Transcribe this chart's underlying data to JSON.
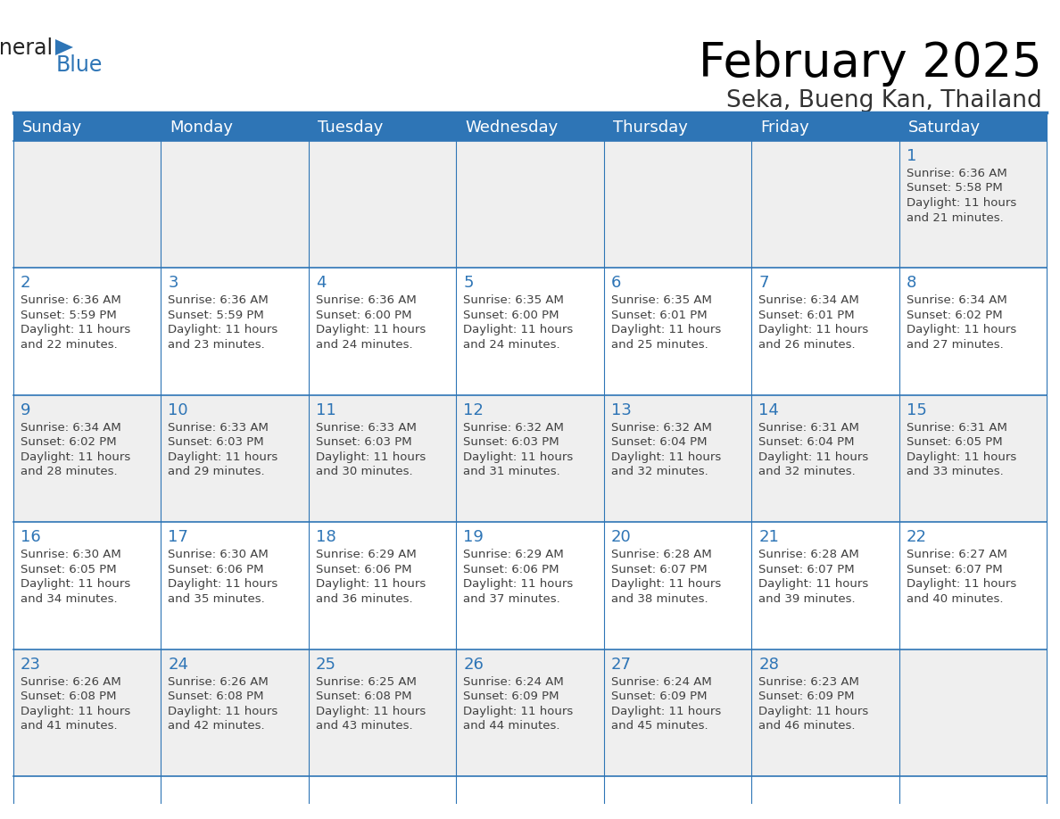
{
  "title": "February 2025",
  "subtitle": "Seka, Bueng Kan, Thailand",
  "days_of_week": [
    "Sunday",
    "Monday",
    "Tuesday",
    "Wednesday",
    "Thursday",
    "Friday",
    "Saturday"
  ],
  "header_bg": "#2E75B6",
  "header_text": "#FFFFFF",
  "cell_bg_odd": "#EFEFEF",
  "cell_bg_even": "#FFFFFF",
  "day_number_color": "#2E75B6",
  "text_color": "#404040",
  "line_color": "#2E75B6",
  "calendar": [
    [
      null,
      null,
      null,
      null,
      null,
      null,
      {
        "day": 1,
        "sunrise": "6:36 AM",
        "sunset": "5:58 PM",
        "daylight": "11 hours",
        "daylight2": "and 21 minutes."
      }
    ],
    [
      {
        "day": 2,
        "sunrise": "6:36 AM",
        "sunset": "5:59 PM",
        "daylight": "11 hours",
        "daylight2": "and 22 minutes."
      },
      {
        "day": 3,
        "sunrise": "6:36 AM",
        "sunset": "5:59 PM",
        "daylight": "11 hours",
        "daylight2": "and 23 minutes."
      },
      {
        "day": 4,
        "sunrise": "6:36 AM",
        "sunset": "6:00 PM",
        "daylight": "11 hours",
        "daylight2": "and 24 minutes."
      },
      {
        "day": 5,
        "sunrise": "6:35 AM",
        "sunset": "6:00 PM",
        "daylight": "11 hours",
        "daylight2": "and 24 minutes."
      },
      {
        "day": 6,
        "sunrise": "6:35 AM",
        "sunset": "6:01 PM",
        "daylight": "11 hours",
        "daylight2": "and 25 minutes."
      },
      {
        "day": 7,
        "sunrise": "6:34 AM",
        "sunset": "6:01 PM",
        "daylight": "11 hours",
        "daylight2": "and 26 minutes."
      },
      {
        "day": 8,
        "sunrise": "6:34 AM",
        "sunset": "6:02 PM",
        "daylight": "11 hours",
        "daylight2": "and 27 minutes."
      }
    ],
    [
      {
        "day": 9,
        "sunrise": "6:34 AM",
        "sunset": "6:02 PM",
        "daylight": "11 hours",
        "daylight2": "and 28 minutes."
      },
      {
        "day": 10,
        "sunrise": "6:33 AM",
        "sunset": "6:03 PM",
        "daylight": "11 hours",
        "daylight2": "and 29 minutes."
      },
      {
        "day": 11,
        "sunrise": "6:33 AM",
        "sunset": "6:03 PM",
        "daylight": "11 hours",
        "daylight2": "and 30 minutes."
      },
      {
        "day": 12,
        "sunrise": "6:32 AM",
        "sunset": "6:03 PM",
        "daylight": "11 hours",
        "daylight2": "and 31 minutes."
      },
      {
        "day": 13,
        "sunrise": "6:32 AM",
        "sunset": "6:04 PM",
        "daylight": "11 hours",
        "daylight2": "and 32 minutes."
      },
      {
        "day": 14,
        "sunrise": "6:31 AM",
        "sunset": "6:04 PM",
        "daylight": "11 hours",
        "daylight2": "and 32 minutes."
      },
      {
        "day": 15,
        "sunrise": "6:31 AM",
        "sunset": "6:05 PM",
        "daylight": "11 hours",
        "daylight2": "and 33 minutes."
      }
    ],
    [
      {
        "day": 16,
        "sunrise": "6:30 AM",
        "sunset": "6:05 PM",
        "daylight": "11 hours",
        "daylight2": "and 34 minutes."
      },
      {
        "day": 17,
        "sunrise": "6:30 AM",
        "sunset": "6:06 PM",
        "daylight": "11 hours",
        "daylight2": "and 35 minutes."
      },
      {
        "day": 18,
        "sunrise": "6:29 AM",
        "sunset": "6:06 PM",
        "daylight": "11 hours",
        "daylight2": "and 36 minutes."
      },
      {
        "day": 19,
        "sunrise": "6:29 AM",
        "sunset": "6:06 PM",
        "daylight": "11 hours",
        "daylight2": "and 37 minutes."
      },
      {
        "day": 20,
        "sunrise": "6:28 AM",
        "sunset": "6:07 PM",
        "daylight": "11 hours",
        "daylight2": "and 38 minutes."
      },
      {
        "day": 21,
        "sunrise": "6:28 AM",
        "sunset": "6:07 PM",
        "daylight": "11 hours",
        "daylight2": "and 39 minutes."
      },
      {
        "day": 22,
        "sunrise": "6:27 AM",
        "sunset": "6:07 PM",
        "daylight": "11 hours",
        "daylight2": "and 40 minutes."
      }
    ],
    [
      {
        "day": 23,
        "sunrise": "6:26 AM",
        "sunset": "6:08 PM",
        "daylight": "11 hours",
        "daylight2": "and 41 minutes."
      },
      {
        "day": 24,
        "sunrise": "6:26 AM",
        "sunset": "6:08 PM",
        "daylight": "11 hours",
        "daylight2": "and 42 minutes."
      },
      {
        "day": 25,
        "sunrise": "6:25 AM",
        "sunset": "6:08 PM",
        "daylight": "11 hours",
        "daylight2": "and 43 minutes."
      },
      {
        "day": 26,
        "sunrise": "6:24 AM",
        "sunset": "6:09 PM",
        "daylight": "11 hours",
        "daylight2": "and 44 minutes."
      },
      {
        "day": 27,
        "sunrise": "6:24 AM",
        "sunset": "6:09 PM",
        "daylight": "11 hours",
        "daylight2": "and 45 minutes."
      },
      {
        "day": 28,
        "sunrise": "6:23 AM",
        "sunset": "6:09 PM",
        "daylight": "11 hours",
        "daylight2": "and 46 minutes."
      },
      null
    ]
  ],
  "title_fontsize": 38,
  "subtitle_fontsize": 19,
  "day_header_fontsize": 13,
  "day_number_fontsize": 13,
  "cell_text_fontsize": 9.5
}
